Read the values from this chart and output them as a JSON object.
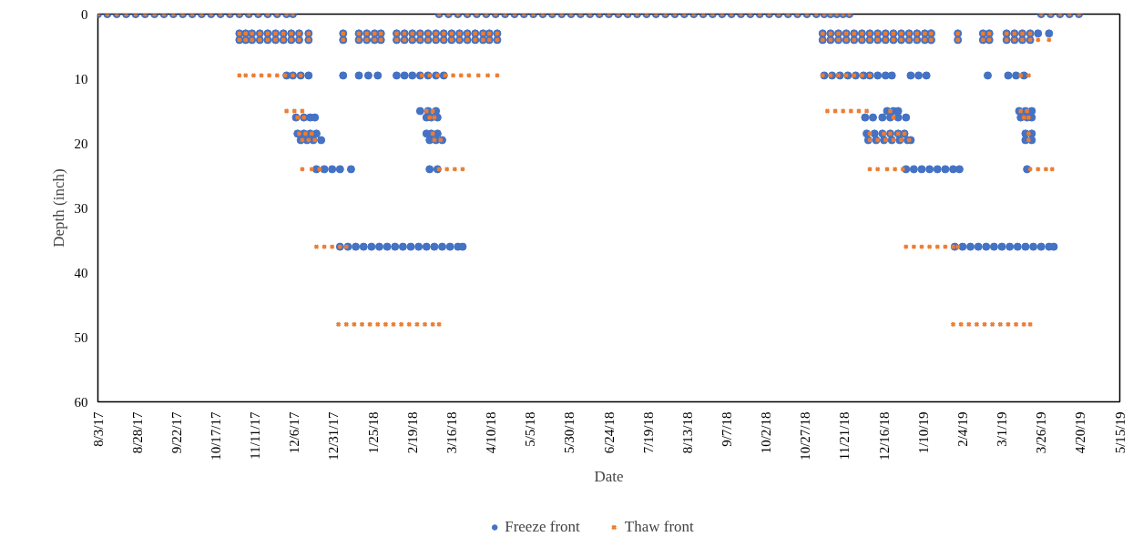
{
  "chart_data": {
    "type": "scatter",
    "xlabel": "Date",
    "ylabel": "Depth (inch)",
    "legend": "bottom",
    "xlim": [
      "2017-08-03",
      "2019-05-15"
    ],
    "xticks": [
      {
        "value": "2017-08-03",
        "label": "8/3/17"
      },
      {
        "value": "2017-08-28",
        "label": "8/28/17"
      },
      {
        "value": "2017-09-22",
        "label": "9/22/17"
      },
      {
        "value": "2017-10-17",
        "label": "10/17/17"
      },
      {
        "value": "2017-11-11",
        "label": "11/11/17"
      },
      {
        "value": "2017-12-06",
        "label": "12/6/17"
      },
      {
        "value": "2017-12-31",
        "label": "12/31/17"
      },
      {
        "value": "2018-01-25",
        "label": "1/25/18"
      },
      {
        "value": "2018-02-19",
        "label": "2/19/18"
      },
      {
        "value": "2018-03-16",
        "label": "3/16/18"
      },
      {
        "value": "2018-04-10",
        "label": "4/10/18"
      },
      {
        "value": "2018-05-05",
        "label": "5/5/18"
      },
      {
        "value": "2018-05-30",
        "label": "5/30/18"
      },
      {
        "value": "2018-06-24",
        "label": "6/24/18"
      },
      {
        "value": "2018-07-19",
        "label": "7/19/18"
      },
      {
        "value": "2018-08-13",
        "label": "8/13/18"
      },
      {
        "value": "2018-09-07",
        "label": "9/7/18"
      },
      {
        "value": "2018-10-02",
        "label": "10/2/18"
      },
      {
        "value": "2018-10-27",
        "label": "10/27/18"
      },
      {
        "value": "2018-11-21",
        "label": "11/21/18"
      },
      {
        "value": "2018-12-16",
        "label": "12/16/18"
      },
      {
        "value": "2019-01-10",
        "label": "1/10/19"
      },
      {
        "value": "2019-02-04",
        "label": "2/4/19"
      },
      {
        "value": "2019-03-01",
        "label": "3/1/19"
      },
      {
        "value": "2019-03-26",
        "label": "3/26/19"
      },
      {
        "value": "2019-04-20",
        "label": "4/20/19"
      },
      {
        "value": "2019-05-15",
        "label": "5/15/19"
      }
    ],
    "ylim": [
      60,
      0
    ],
    "yticks": [
      0,
      10,
      20,
      30,
      40,
      50,
      60
    ],
    "series": [
      {
        "name": "Freeze front",
        "color": "#4472c4",
        "marker": "circle",
        "x": [
          "2017-08-03",
          "2017-08-09",
          "2017-08-15",
          "2017-08-21",
          "2017-08-27",
          "2017-09-02",
          "2017-09-08",
          "2017-09-14",
          "2017-09-20",
          "2017-09-26",
          "2017-10-02",
          "2017-10-08",
          "2017-10-14",
          "2017-10-20",
          "2017-10-26",
          "2017-11-01",
          "2017-11-07",
          "2017-11-13",
          "2017-11-19",
          "2017-11-25",
          "2017-12-01",
          "2017-12-05",
          "2018-03-08",
          "2018-03-14",
          "2018-03-20",
          "2018-03-26",
          "2018-04-01",
          "2018-04-07",
          "2018-04-13",
          "2018-04-19",
          "2018-04-25",
          "2018-05-01",
          "2018-05-07",
          "2018-05-13",
          "2018-05-19",
          "2018-05-25",
          "2018-05-31",
          "2018-06-06",
          "2018-06-12",
          "2018-06-18",
          "2018-06-24",
          "2018-06-30",
          "2018-07-06",
          "2018-07-12",
          "2018-07-18",
          "2018-07-24",
          "2018-07-30",
          "2018-08-05",
          "2018-08-11",
          "2018-08-17",
          "2018-08-23",
          "2018-08-29",
          "2018-09-04",
          "2018-09-10",
          "2018-09-16",
          "2018-09-22",
          "2018-09-28",
          "2018-10-04",
          "2018-10-10",
          "2018-10-16",
          "2018-10-22",
          "2018-10-28",
          "2018-11-03",
          "2018-11-08",
          "2018-11-12",
          "2018-11-16",
          "2018-11-20",
          "2018-11-24",
          "2019-03-26",
          "2019-04-01",
          "2019-04-07",
          "2019-04-13",
          "2019-04-19",
          "2017-11-01",
          "2017-11-05",
          "2017-11-09",
          "2017-11-14",
          "2017-11-19",
          "2017-11-24",
          "2017-11-29",
          "2017-12-04",
          "2017-12-09",
          "2017-12-15",
          "2018-01-06",
          "2018-01-16",
          "2018-01-21",
          "2018-01-26",
          "2018-01-30",
          "2018-02-09",
          "2018-02-14",
          "2018-02-19",
          "2018-02-24",
          "2018-03-01",
          "2018-03-06",
          "2018-03-11",
          "2018-03-16",
          "2018-03-21",
          "2018-03-26",
          "2018-03-31",
          "2018-04-05",
          "2018-04-09",
          "2018-04-14",
          "2018-11-07",
          "2018-11-12",
          "2018-11-17",
          "2018-11-22",
          "2018-11-27",
          "2018-12-02",
          "2018-12-07",
          "2018-12-12",
          "2018-12-17",
          "2018-12-22",
          "2018-12-27",
          "2019-01-01",
          "2019-01-06",
          "2019-01-11",
          "2019-01-15",
          "2019-02-01",
          "2019-02-17",
          "2019-02-21",
          "2019-03-04",
          "2019-03-09",
          "2019-03-14",
          "2019-03-19",
          "2019-03-24",
          "2019-03-31",
          "2017-11-01",
          "2017-11-05",
          "2017-11-09",
          "2017-11-14",
          "2017-11-19",
          "2017-11-24",
          "2017-11-29",
          "2017-12-04",
          "2017-12-09",
          "2017-12-15",
          "2018-01-06",
          "2018-01-16",
          "2018-01-21",
          "2018-01-26",
          "2018-01-30",
          "2018-02-09",
          "2018-02-14",
          "2018-02-19",
          "2018-02-24",
          "2018-03-01",
          "2018-03-06",
          "2018-03-11",
          "2018-03-16",
          "2018-03-21",
          "2018-03-26",
          "2018-03-31",
          "2018-04-05",
          "2018-04-09",
          "2018-04-14",
          "2018-11-07",
          "2018-11-12",
          "2018-11-17",
          "2018-11-22",
          "2018-11-27",
          "2018-12-02",
          "2018-12-07",
          "2018-12-12",
          "2018-12-17",
          "2018-12-22",
          "2018-12-27",
          "2019-01-01",
          "2019-01-06",
          "2019-01-11",
          "2019-01-15",
          "2019-02-01",
          "2019-02-17",
          "2019-02-21",
          "2019-03-04",
          "2019-03-09",
          "2019-03-14",
          "2019-03-19",
          "2017-12-01",
          "2017-12-05",
          "2017-12-10",
          "2017-12-15",
          "2018-01-06",
          "2018-01-16",
          "2018-01-22",
          "2018-01-28",
          "2018-02-09",
          "2018-02-14",
          "2018-02-19",
          "2018-02-24",
          "2018-03-01",
          "2018-03-06",
          "2018-03-11",
          "2018-11-08",
          "2018-11-13",
          "2018-11-18",
          "2018-11-23",
          "2018-11-28",
          "2018-12-03",
          "2018-12-07",
          "2018-12-12",
          "2018-12-17",
          "2018-12-21",
          "2019-01-02",
          "2019-01-07",
          "2019-01-12",
          "2019-02-20",
          "2019-03-05",
          "2019-03-10",
          "2019-03-15",
          "2018-02-24",
          "2018-03-01",
          "2018-03-06",
          "2018-12-18",
          "2018-12-22",
          "2018-12-25",
          "2019-03-12",
          "2019-03-16",
          "2019-03-20",
          "2017-12-07",
          "2017-12-12",
          "2017-12-16",
          "2017-12-19",
          "2018-02-28",
          "2018-03-03",
          "2018-03-07",
          "2018-12-04",
          "2018-12-09",
          "2018-12-15",
          "2018-12-20",
          "2018-12-25",
          "2018-12-30",
          "2019-03-13",
          "2019-03-17",
          "2019-03-20",
          "2017-12-08",
          "2017-12-12",
          "2017-12-16",
          "2017-12-20",
          "2018-02-28",
          "2018-03-03",
          "2018-03-07",
          "2018-12-05",
          "2018-12-10",
          "2018-12-15",
          "2018-12-20",
          "2018-12-25",
          "2018-12-29",
          "2019-03-16",
          "2019-03-20",
          "2017-12-10",
          "2017-12-14",
          "2017-12-18",
          "2017-12-23",
          "2018-03-02",
          "2018-03-06",
          "2018-03-10",
          "2018-12-06",
          "2018-12-11",
          "2018-12-16",
          "2018-12-21",
          "2018-12-26",
          "2018-12-31",
          "2019-01-02",
          "2019-03-16",
          "2019-03-20",
          "2017-12-20",
          "2017-12-25",
          "2017-12-30",
          "2018-01-04",
          "2018-01-11",
          "2018-03-02",
          "2018-03-07",
          "2018-12-30",
          "2019-01-04",
          "2019-01-09",
          "2019-01-14",
          "2019-01-19",
          "2019-01-24",
          "2019-01-29",
          "2019-02-02",
          "2019-03-17",
          "2018-01-04",
          "2018-01-09",
          "2018-01-14",
          "2018-01-19",
          "2018-01-24",
          "2018-01-29",
          "2018-02-03",
          "2018-02-08",
          "2018-02-13",
          "2018-02-18",
          "2018-02-23",
          "2018-02-28",
          "2018-03-05",
          "2018-03-10",
          "2018-03-15",
          "2018-03-20",
          "2018-03-23",
          "2019-01-30",
          "2019-02-04",
          "2019-02-09",
          "2019-02-14",
          "2019-02-19",
          "2019-02-24",
          "2019-03-01",
          "2019-03-06",
          "2019-03-11",
          "2019-03-16",
          "2019-03-21",
          "2019-03-26",
          "2019-03-31",
          "2019-04-03"
        ],
        "values": [
          0,
          0,
          0,
          0,
          0,
          0,
          0,
          0,
          0,
          0,
          0,
          0,
          0,
          0,
          0,
          0,
          0,
          0,
          0,
          0,
          0,
          0,
          0,
          0,
          0,
          0,
          0,
          0,
          0,
          0,
          0,
          0,
          0,
          0,
          0,
          0,
          0,
          0,
          0,
          0,
          0,
          0,
          0,
          0,
          0,
          0,
          0,
          0,
          0,
          0,
          0,
          0,
          0,
          0,
          0,
          0,
          0,
          0,
          0,
          0,
          0,
          0,
          0,
          0,
          0,
          0,
          0,
          0,
          0,
          0,
          0,
          0,
          0,
          3,
          3,
          3,
          3,
          3,
          3,
          3,
          3,
          3,
          3,
          3,
          3,
          3,
          3,
          3,
          3,
          3,
          3,
          3,
          3,
          3,
          3,
          3,
          3,
          3,
          3,
          3,
          3,
          3,
          3,
          3,
          3,
          3,
          3,
          3,
          3,
          3,
          3,
          3,
          3,
          3,
          3,
          3,
          3,
          3,
          3,
          3,
          3,
          3,
          3,
          3,
          3,
          3,
          4,
          4,
          4,
          4,
          4,
          4,
          4,
          4,
          4,
          4,
          4,
          4,
          4,
          4,
          4,
          4,
          4,
          4,
          4,
          4,
          4,
          4,
          4,
          4,
          4,
          4,
          4,
          4,
          4,
          4,
          4,
          4,
          4,
          4,
          4,
          4,
          4,
          4,
          4,
          4,
          4,
          4,
          4,
          4,
          4,
          4,
          4,
          4,
          4,
          4,
          4,
          9.5,
          9.5,
          9.5,
          9.5,
          9.5,
          9.5,
          9.5,
          9.5,
          9.5,
          9.5,
          9.5,
          9.5,
          9.5,
          9.5,
          9.5,
          9.5,
          9.5,
          9.5,
          9.5,
          9.5,
          9.5,
          9.5,
          9.5,
          9.5,
          9.5,
          9.5,
          9.5,
          9.5,
          9.5,
          9.5,
          9.5,
          9.5,
          15,
          15,
          15,
          15,
          15,
          15,
          15,
          15,
          15,
          16,
          16,
          16,
          16,
          16,
          16,
          16,
          16,
          16,
          16,
          16,
          16,
          16,
          16,
          16,
          16,
          18.5,
          18.5,
          18.5,
          18.5,
          18.5,
          18.5,
          18.5,
          18.5,
          18.5,
          18.5,
          18.5,
          18.5,
          18.5,
          18.5,
          18.5,
          19.5,
          19.5,
          19.5,
          19.5,
          19.5,
          19.5,
          19.5,
          19.5,
          19.5,
          19.5,
          19.5,
          19.5,
          19.5,
          19.5,
          19.5,
          19.5,
          24,
          24,
          24,
          24,
          24,
          24,
          24,
          24,
          24,
          24,
          24,
          24,
          24,
          24,
          24,
          24,
          36,
          36,
          36,
          36,
          36,
          36,
          36,
          36,
          36,
          36,
          36,
          36,
          36,
          36,
          36,
          36,
          36,
          36,
          36,
          36,
          36,
          36,
          36,
          36,
          36,
          36,
          36,
          36,
          36,
          36,
          36
        ]
      },
      {
        "name": "Thaw front",
        "color": "#ed7d31",
        "marker": "cross",
        "x": [
          "2017-08-03",
          "2017-08-09",
          "2017-08-15",
          "2017-08-21",
          "2017-08-27",
          "2017-09-02",
          "2017-09-08",
          "2017-09-14",
          "2017-09-20",
          "2017-09-26",
          "2017-10-02",
          "2017-10-08",
          "2017-10-14",
          "2017-10-20",
          "2017-10-26",
          "2017-11-01",
          "2017-11-07",
          "2017-11-13",
          "2017-11-19",
          "2017-11-25",
          "2017-12-01",
          "2017-12-05",
          "2018-03-08",
          "2018-03-14",
          "2018-03-20",
          "2018-03-26",
          "2018-04-01",
          "2018-04-07",
          "2018-04-13",
          "2018-04-19",
          "2018-04-25",
          "2018-05-01",
          "2018-05-07",
          "2018-05-13",
          "2018-05-19",
          "2018-05-25",
          "2018-05-31",
          "2018-06-06",
          "2018-06-12",
          "2018-06-18",
          "2018-06-24",
          "2018-06-30",
          "2018-07-06",
          "2018-07-12",
          "2018-07-18",
          "2018-07-24",
          "2018-07-30",
          "2018-08-05",
          "2018-08-11",
          "2018-08-17",
          "2018-08-23",
          "2018-08-29",
          "2018-09-04",
          "2018-09-10",
          "2018-09-16",
          "2018-09-22",
          "2018-09-28",
          "2018-10-04",
          "2018-10-10",
          "2018-10-16",
          "2018-10-22",
          "2018-10-28",
          "2018-11-03",
          "2018-11-08",
          "2018-11-12",
          "2018-11-16",
          "2018-11-20",
          "2018-11-24",
          "2019-03-26",
          "2019-04-01",
          "2019-04-07",
          "2019-04-13",
          "2019-04-19",
          "2017-11-01",
          "2017-11-05",
          "2017-11-09",
          "2017-11-14",
          "2017-11-19",
          "2017-11-24",
          "2017-11-29",
          "2017-12-04",
          "2017-12-09",
          "2017-12-15",
          "2018-01-06",
          "2018-01-16",
          "2018-01-21",
          "2018-01-26",
          "2018-01-30",
          "2018-02-09",
          "2018-02-14",
          "2018-02-19",
          "2018-02-24",
          "2018-03-01",
          "2018-03-06",
          "2018-03-11",
          "2018-03-16",
          "2018-03-21",
          "2018-03-26",
          "2018-03-31",
          "2018-04-05",
          "2018-04-09",
          "2018-04-14",
          "2018-11-07",
          "2018-11-12",
          "2018-11-17",
          "2018-11-22",
          "2018-11-27",
          "2018-12-02",
          "2018-12-07",
          "2018-12-12",
          "2018-12-17",
          "2018-12-22",
          "2018-12-27",
          "2019-01-01",
          "2019-01-06",
          "2019-01-11",
          "2019-01-15",
          "2019-02-01",
          "2019-02-17",
          "2019-02-21",
          "2019-03-04",
          "2019-03-09",
          "2019-03-14",
          "2019-03-19",
          "2017-11-01",
          "2017-11-05",
          "2017-11-09",
          "2017-11-14",
          "2017-11-19",
          "2017-11-24",
          "2017-11-29",
          "2017-12-04",
          "2017-12-09",
          "2017-12-15",
          "2018-01-06",
          "2018-01-16",
          "2018-01-21",
          "2018-01-26",
          "2018-01-30",
          "2018-02-09",
          "2018-02-14",
          "2018-02-19",
          "2018-02-24",
          "2018-03-01",
          "2018-03-06",
          "2018-03-11",
          "2018-03-16",
          "2018-03-21",
          "2018-03-26",
          "2018-03-31",
          "2018-04-05",
          "2018-04-09",
          "2018-04-14",
          "2018-11-07",
          "2018-11-12",
          "2018-11-17",
          "2018-11-22",
          "2018-11-27",
          "2018-12-02",
          "2018-12-07",
          "2018-12-12",
          "2018-12-17",
          "2018-12-22",
          "2018-12-27",
          "2019-01-01",
          "2019-01-06",
          "2019-01-11",
          "2019-01-15",
          "2019-02-01",
          "2019-02-17",
          "2019-02-21",
          "2019-03-04",
          "2019-03-09",
          "2019-03-14",
          "2019-03-19",
          "2019-03-24",
          "2019-03-31",
          "2017-11-01",
          "2017-11-05",
          "2017-11-10",
          "2017-11-15",
          "2017-11-20",
          "2017-11-25",
          "2017-11-30",
          "2017-12-05",
          "2017-12-10",
          "2018-02-25",
          "2018-03-02",
          "2018-03-07",
          "2018-03-12",
          "2018-03-17",
          "2018-03-22",
          "2018-03-27",
          "2018-04-02",
          "2018-04-08",
          "2018-04-14",
          "2018-11-07",
          "2018-11-12",
          "2018-11-17",
          "2018-11-22",
          "2018-11-27",
          "2018-12-02",
          "2018-12-07",
          "2019-03-13",
          "2019-03-18",
          "2017-12-01",
          "2017-12-06",
          "2017-12-11",
          "2018-02-28",
          "2018-03-04",
          "2018-11-10",
          "2018-11-15",
          "2018-11-20",
          "2018-11-25",
          "2018-11-30",
          "2018-12-05",
          "2018-12-20",
          "2019-03-13",
          "2019-03-17",
          "2017-12-08",
          "2017-12-12",
          "2018-03-02",
          "2018-03-05",
          "2018-12-22",
          "2019-03-15",
          "2019-03-18",
          "2017-12-09",
          "2017-12-13",
          "2017-12-17",
          "2018-03-04",
          "2018-12-07",
          "2018-12-16",
          "2018-12-20",
          "2018-12-25",
          "2018-12-29",
          "2019-03-18",
          "2017-12-11",
          "2017-12-15",
          "2017-12-19",
          "2018-03-05",
          "2018-03-09",
          "2018-12-07",
          "2018-12-12",
          "2018-12-17",
          "2018-12-22",
          "2018-12-27",
          "2019-01-01",
          "2019-03-18",
          "2017-12-11",
          "2017-12-17",
          "2017-12-22",
          "2018-03-08",
          "2018-03-13",
          "2018-03-18",
          "2018-03-23",
          "2018-12-07",
          "2018-12-12",
          "2018-12-18",
          "2018-12-23",
          "2018-12-28",
          "2019-03-19",
          "2019-03-24",
          "2019-03-29",
          "2019-04-02",
          "2017-12-20",
          "2017-12-25",
          "2017-12-30",
          "2018-01-04",
          "2018-01-08",
          "2018-12-30",
          "2019-01-04",
          "2019-01-09",
          "2019-01-14",
          "2019-01-19",
          "2019-01-24",
          "2019-01-29",
          "2019-02-01",
          "2018-01-03",
          "2018-01-08",
          "2018-01-13",
          "2018-01-18",
          "2018-01-23",
          "2018-01-28",
          "2018-02-02",
          "2018-02-07",
          "2018-02-12",
          "2018-02-17",
          "2018-02-22",
          "2018-02-27",
          "2018-03-04",
          "2018-03-08",
          "2019-01-29",
          "2019-02-03",
          "2019-02-08",
          "2019-02-13",
          "2019-02-18",
          "2019-02-23",
          "2019-02-28",
          "2019-03-05",
          "2019-03-10",
          "2019-03-15",
          "2019-03-19"
        ],
        "values": [
          0,
          0,
          0,
          0,
          0,
          0,
          0,
          0,
          0,
          0,
          0,
          0,
          0,
          0,
          0,
          0,
          0,
          0,
          0,
          0,
          0,
          0,
          0,
          0,
          0,
          0,
          0,
          0,
          0,
          0,
          0,
          0,
          0,
          0,
          0,
          0,
          0,
          0,
          0,
          0,
          0,
          0,
          0,
          0,
          0,
          0,
          0,
          0,
          0,
          0,
          0,
          0,
          0,
          0,
          0,
          0,
          0,
          0,
          0,
          0,
          0,
          0,
          0,
          0,
          0,
          0,
          0,
          0,
          0,
          0,
          0,
          0,
          0,
          3,
          3,
          3,
          3,
          3,
          3,
          3,
          3,
          3,
          3,
          3,
          3,
          3,
          3,
          3,
          3,
          3,
          3,
          3,
          3,
          3,
          3,
          3,
          3,
          3,
          3,
          3,
          3,
          3,
          3,
          3,
          3,
          3,
          3,
          3,
          3,
          3,
          3,
          3,
          3,
          3,
          3,
          3,
          3,
          3,
          3,
          3,
          3,
          3,
          3,
          3,
          4,
          4,
          4,
          4,
          4,
          4,
          4,
          4,
          4,
          4,
          4,
          4,
          4,
          4,
          4,
          4,
          4,
          4,
          4,
          4,
          4,
          4,
          4,
          4,
          4,
          4,
          4,
          4,
          4,
          4,
          4,
          4,
          4,
          4,
          4,
          4,
          4,
          4,
          4,
          4,
          4,
          4,
          4,
          4,
          4,
          4,
          4,
          4,
          4,
          4,
          4,
          4,
          4,
          9.5,
          9.5,
          9.5,
          9.5,
          9.5,
          9.5,
          9.5,
          9.5,
          9.5,
          9.5,
          9.5,
          9.5,
          9.5,
          9.5,
          9.5,
          9.5,
          9.5,
          9.5,
          9.5,
          9.5,
          9.5,
          9.5,
          9.5,
          9.5,
          9.5,
          9.5,
          9.5,
          9.5,
          15,
          15,
          15,
          15,
          15,
          15,
          15,
          15,
          15,
          15,
          15,
          15,
          15,
          15,
          16,
          16,
          16,
          16,
          16,
          16,
          16,
          18.5,
          18.5,
          18.5,
          18.5,
          18.5,
          18.5,
          18.5,
          18.5,
          18.5,
          18.5,
          19.5,
          19.5,
          19.5,
          19.5,
          19.5,
          19.5,
          19.5,
          19.5,
          19.5,
          19.5,
          19.5,
          19.5,
          24,
          24,
          24,
          24,
          24,
          24,
          24,
          24,
          24,
          24,
          24,
          24,
          24,
          24,
          24,
          24,
          36,
          36,
          36,
          36,
          36,
          36,
          36,
          36,
          36,
          36,
          36,
          36,
          36,
          48,
          48,
          48,
          48,
          48,
          48,
          48,
          48,
          48,
          48,
          48,
          48,
          48,
          48,
          48,
          48,
          48,
          48,
          48,
          48,
          48,
          48,
          48,
          48,
          48
        ]
      }
    ]
  }
}
